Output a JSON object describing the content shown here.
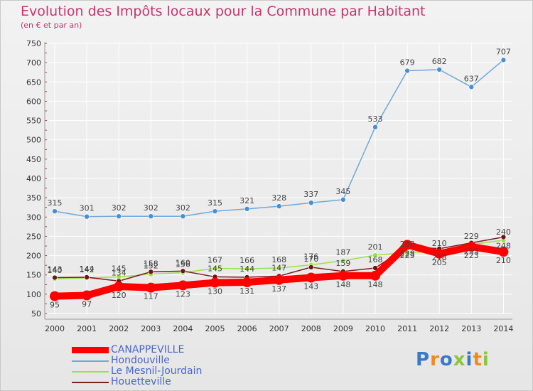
{
  "header": {
    "title": "Evolution des Impôts locaux pour la Commune par Habitant",
    "subtitle": "(en € et par an)"
  },
  "logo": {
    "text": "Proxiti",
    "colors": [
      "#3b78c8",
      "#f08a1c",
      "#3b78c8",
      "#8cc63f",
      "#3b78c8",
      "#f08a1c",
      "#8cc63f"
    ]
  },
  "chart_data": {
    "type": "line",
    "title": "Evolution des Impôts locaux pour la Commune par Habitant",
    "subtitle": "(en € et par an)",
    "xlabel": "",
    "ylabel": "",
    "ylim": [
      50,
      750
    ],
    "yticks": [
      50,
      100,
      150,
      200,
      250,
      300,
      350,
      400,
      450,
      500,
      550,
      600,
      650,
      700,
      750
    ],
    "categories": [
      "2000",
      "2001",
      "2002",
      "2003",
      "2004",
      "2005",
      "2006",
      "2007",
      "2008",
      "2009",
      "2010",
      "2011",
      "2012",
      "2013",
      "2014"
    ],
    "grid": true,
    "legend_position": "bottom-left",
    "series": [
      {
        "name": "CANAPPEVILLE",
        "color": "#ff0000",
        "values": [
          95,
          97,
          120,
          117,
          123,
          130,
          131,
          137,
          143,
          148,
          148,
          228,
          205,
          223,
          210
        ]
      },
      {
        "name": "Hondouville",
        "color": "#6fa8dc",
        "values": [
          315,
          301,
          302,
          302,
          302,
          315,
          321,
          328,
          337,
          345,
          533,
          679,
          682,
          637,
          707
        ]
      },
      {
        "name": "Le Mesnil-Jourdain",
        "color": "#99e24a",
        "values": [
          140,
          142,
          145,
          152,
          156,
          167,
          166,
          168,
          176,
          187,
          201,
          208,
          210,
          229,
          240
        ]
      },
      {
        "name": "Houetteville",
        "color": "#7a1e1e",
        "values": [
          143,
          144,
          134,
          158,
          160,
          145,
          144,
          147,
          170,
          159,
          168,
          223,
          218,
          233,
          248
        ]
      }
    ]
  }
}
